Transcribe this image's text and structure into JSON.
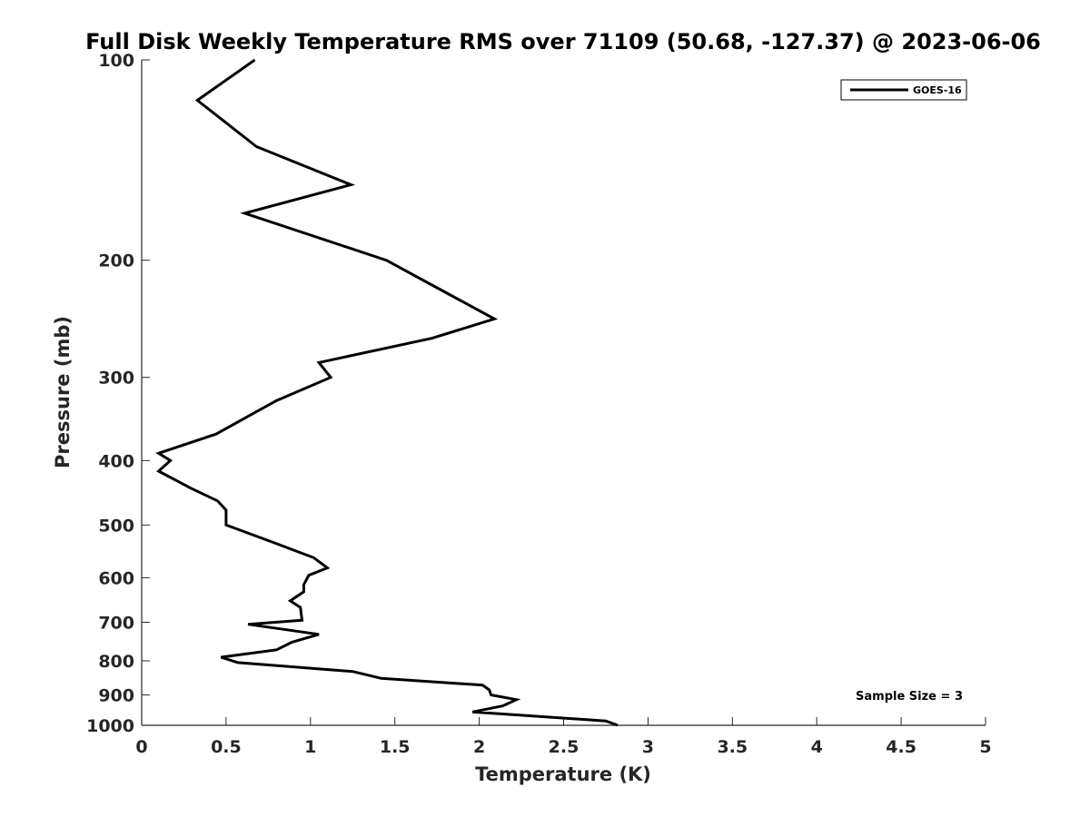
{
  "chart_data": {
    "type": "line",
    "title": "Full Disk Weekly Temperature RMS over 71109 (50.68, -127.37) @ 2023-06-06",
    "xlabel": "Temperature (K)",
    "ylabel": "Pressure (mb)",
    "xlim": [
      0,
      5
    ],
    "ylim": [
      100,
      1000
    ],
    "y_scale": "log",
    "y_reversed": true,
    "x_ticks": [
      "0",
      "0.5",
      "1",
      "1.5",
      "2",
      "2.5",
      "3",
      "3.5",
      "4",
      "4.5",
      "5"
    ],
    "y_ticks": [
      "100",
      "200",
      "300",
      "400",
      "500",
      "600",
      "700",
      "800",
      "900",
      "1000"
    ],
    "grid": false,
    "legend_position": "top-right",
    "annotation": "Sample Size = 3",
    "series": [
      {
        "name": "GOES-16",
        "color": "#000000",
        "points": [
          [
            0.67,
            100
          ],
          [
            0.33,
            115
          ],
          [
            0.68,
            135
          ],
          [
            1.24,
            154
          ],
          [
            0.61,
            170
          ],
          [
            1.45,
            200
          ],
          [
            1.75,
            220
          ],
          [
            2.09,
            245
          ],
          [
            1.72,
            262
          ],
          [
            1.05,
            285
          ],
          [
            1.12,
            300
          ],
          [
            0.8,
            325
          ],
          [
            0.66,
            340
          ],
          [
            0.44,
            365
          ],
          [
            0.1,
            390
          ],
          [
            0.17,
            400
          ],
          [
            0.1,
            415
          ],
          [
            0.29,
            440
          ],
          [
            0.45,
            460
          ],
          [
            0.5,
            475
          ],
          [
            0.5,
            500
          ],
          [
            0.77,
            530
          ],
          [
            1.02,
            560
          ],
          [
            1.1,
            580
          ],
          [
            0.99,
            595
          ],
          [
            0.96,
            615
          ],
          [
            0.96,
            630
          ],
          [
            0.88,
            650
          ],
          [
            0.94,
            665
          ],
          [
            0.95,
            695
          ],
          [
            0.63,
            705
          ],
          [
            1.05,
            730
          ],
          [
            0.89,
            750
          ],
          [
            0.8,
            770
          ],
          [
            0.47,
            790
          ],
          [
            0.57,
            805
          ],
          [
            1.25,
            830
          ],
          [
            1.42,
            850
          ],
          [
            2.02,
            870
          ],
          [
            2.06,
            885
          ],
          [
            2.07,
            900
          ],
          [
            2.22,
            915
          ],
          [
            2.14,
            935
          ],
          [
            1.96,
            955
          ],
          [
            2.75,
            985
          ],
          [
            2.82,
            1000
          ]
        ]
      }
    ]
  }
}
